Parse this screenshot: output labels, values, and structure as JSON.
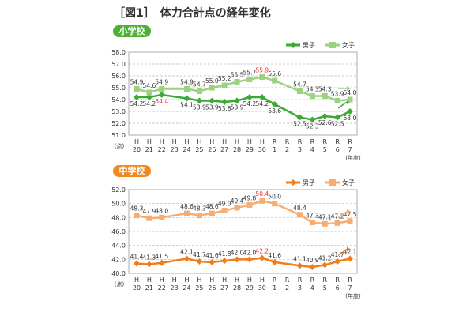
{
  "title": "［図1］　体力合計点の経年変化",
  "chart_data": [
    {
      "type": "line",
      "badge": "小学校",
      "badge_color": "#4cb035",
      "categories": [
        [
          "H",
          "20"
        ],
        [
          "H",
          "21"
        ],
        [
          "H",
          "22"
        ],
        [
          "H",
          "23"
        ],
        [
          "H",
          "24"
        ],
        [
          "H",
          "25"
        ],
        [
          "H",
          "26"
        ],
        [
          "H",
          "27"
        ],
        [
          "H",
          "28"
        ],
        [
          "H",
          "29"
        ],
        [
          "H",
          "30"
        ],
        [
          "R",
          "1"
        ],
        [
          "R",
          "2"
        ],
        [
          "R",
          "3"
        ],
        [
          "R",
          "4"
        ],
        [
          "R",
          "5"
        ],
        [
          "R",
          "6"
        ],
        [
          "R",
          "7"
        ]
      ],
      "ylim": [
        51.0,
        58.0
      ],
      "yticks": [
        "51.0",
        "52.0",
        "53.0",
        "54.0",
        "55.0",
        "56.0",
        "57.0",
        "58.0"
      ],
      "yunit": "(点)",
      "xunit": "(年度)",
      "grid": true,
      "legend": "top-right",
      "series": [
        {
          "name": "男子",
          "color": "#3aaa35",
          "marker": "diamond",
          "label_side": "below",
          "values": [
            54.2,
            54.2,
            54.4,
            null,
            54.1,
            53.9,
            53.9,
            53.8,
            53.9,
            54.2,
            54.2,
            53.6,
            null,
            52.5,
            52.3,
            52.6,
            52.5,
            53.0
          ],
          "highlight": [
            2
          ]
        },
        {
          "name": "女子",
          "color": "#9bd27f",
          "marker": "square",
          "label_side": "above",
          "values": [
            54.9,
            54.6,
            54.9,
            null,
            54.9,
            54.7,
            55.0,
            55.2,
            55.5,
            55.7,
            55.9,
            55.6,
            null,
            54.7,
            54.3,
            54.3,
            53.9,
            54.0
          ],
          "highlight": [
            10
          ]
        }
      ],
      "highlight_color": "#e8343a"
    },
    {
      "type": "line",
      "badge": "中学校",
      "badge_color": "#f08a1e",
      "categories": [
        [
          "H",
          "20"
        ],
        [
          "H",
          "21"
        ],
        [
          "H",
          "22"
        ],
        [
          "H",
          "23"
        ],
        [
          "H",
          "24"
        ],
        [
          "H",
          "25"
        ],
        [
          "H",
          "26"
        ],
        [
          "H",
          "27"
        ],
        [
          "H",
          "28"
        ],
        [
          "H",
          "29"
        ],
        [
          "H",
          "30"
        ],
        [
          "R",
          "1"
        ],
        [
          "R",
          "2"
        ],
        [
          "R",
          "3"
        ],
        [
          "R",
          "4"
        ],
        [
          "R",
          "5"
        ],
        [
          "R",
          "6"
        ],
        [
          "R",
          "7"
        ]
      ],
      "ylim": [
        40.0,
        52.0
      ],
      "yticks": [
        "40.0",
        "42.0",
        "44.0",
        "46.0",
        "48.0",
        "50.0",
        "52.0"
      ],
      "yunit": "(点)",
      "xunit": "(年度)",
      "grid": true,
      "legend": "top-right",
      "series": [
        {
          "name": "男子",
          "color": "#f07d1a",
          "marker": "diamond",
          "label_side": "above",
          "values": [
            41.4,
            41.3,
            41.5,
            null,
            42.1,
            41.7,
            41.6,
            41.8,
            42.0,
            42.0,
            42.2,
            41.6,
            null,
            41.1,
            40.9,
            41.2,
            41.7,
            42.1
          ],
          "highlight": [
            10
          ]
        },
        {
          "name": "女子",
          "color": "#f7ad72",
          "marker": "square",
          "label_side": "above",
          "values": [
            48.3,
            47.9,
            48.0,
            null,
            48.6,
            48.3,
            48.6,
            49.0,
            49.4,
            49.8,
            50.4,
            50.0,
            null,
            48.4,
            47.3,
            47.1,
            47.2,
            47.5
          ],
          "highlight": [
            10
          ]
        }
      ],
      "highlight_color": "#e8343a"
    }
  ]
}
